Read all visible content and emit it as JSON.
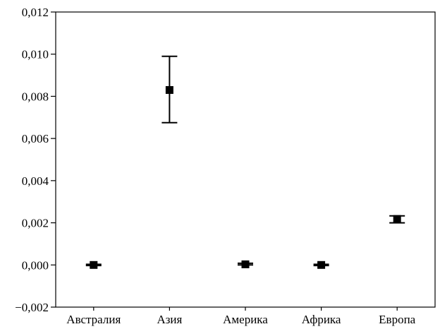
{
  "chart_data": {
    "type": "scatter",
    "subtype": "mean-with-error-bars",
    "title": "",
    "xlabel": "",
    "ylabel": "",
    "categories": [
      "Австралия",
      "Азия",
      "Америка",
      "Африка",
      "Европа"
    ],
    "values": [
      0.0,
      0.0083,
      3e-05,
      0.0,
      0.00218
    ],
    "error_low": [
      -3e-05,
      0.00675,
      0.0,
      -3e-05,
      0.002
    ],
    "error_high": [
      3e-05,
      0.0099,
      8e-05,
      3e-05,
      0.00233
    ],
    "ylim": [
      -0.002,
      0.012
    ],
    "yticks": [
      -0.002,
      0.0,
      0.002,
      0.004,
      0.006,
      0.008,
      0.01,
      0.012
    ],
    "ytick_labels": [
      "−0,002",
      "0,000",
      "0,002",
      "0,004",
      "0,006",
      "0,008",
      "0,010",
      "0,012"
    ],
    "grid": false,
    "marker": "square",
    "color": "#000000"
  }
}
